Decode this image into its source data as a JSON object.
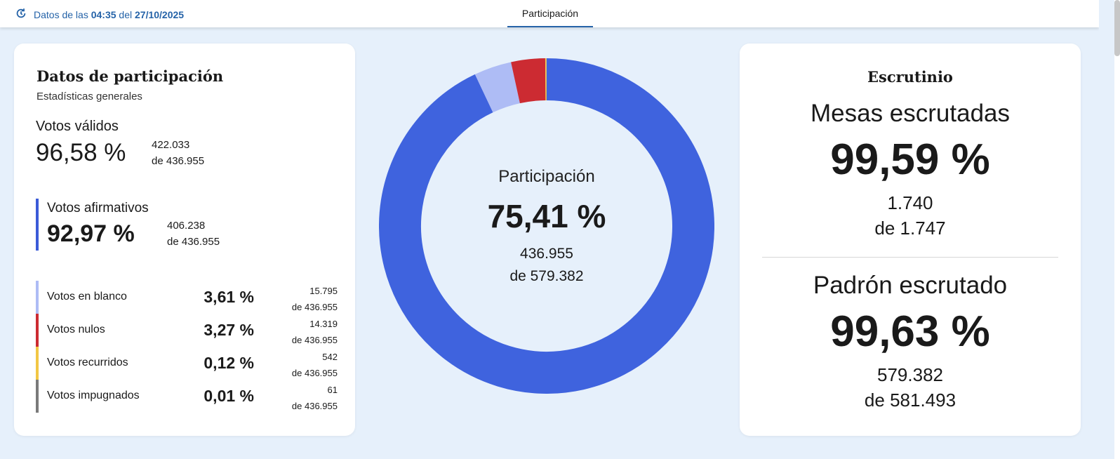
{
  "header": {
    "updated_prefix": "Datos de las",
    "time": "04:35",
    "updated_mid": "del",
    "date": "27/10/2025",
    "tab_label": "Participación"
  },
  "left_card": {
    "title": "Datos de participación",
    "subtitle": "Estadísticas generales",
    "valid": {
      "label": "Votos válidos",
      "pct": "96,58 %",
      "count": "422.033",
      "of": "de 436.955"
    },
    "affirmative": {
      "label": "Votos afirmativos",
      "pct": "92,97 %",
      "count": "406.238",
      "of": "de 436.955"
    },
    "rows": [
      {
        "label": "Votos en blanco",
        "pct": "3,61 %",
        "count": "15.795",
        "of": "de 436.955",
        "color": "#aebcf5"
      },
      {
        "label": "Votos nulos",
        "pct": "3,27 %",
        "count": "14.319",
        "of": "de 436.955",
        "color": "#cc2b32"
      },
      {
        "label": "Votos recurridos",
        "pct": "0,12 %",
        "count": "542",
        "of": "de 436.955",
        "color": "#f2c744"
      },
      {
        "label": "Votos impugnados",
        "pct": "0,01 %",
        "count": "61",
        "of": "de 436.955",
        "color": "#7a7a7a"
      }
    ]
  },
  "donut": {
    "label": "Participación",
    "pct": "75,41 %",
    "count": "436.955",
    "of": "de 579.382",
    "segments": [
      {
        "name": "Votos afirmativos",
        "value": 406238,
        "color": "#3f63de"
      },
      {
        "name": "Votos en blanco",
        "value": 15795,
        "color": "#aebcf5"
      },
      {
        "name": "Votos nulos",
        "value": 14319,
        "color": "#cc2b32"
      },
      {
        "name": "Votos recurridos",
        "value": 542,
        "color": "#f2c744"
      },
      {
        "name": "Votos impugnados",
        "value": 61,
        "color": "#7a7a7a"
      }
    ]
  },
  "right_card": {
    "title": "Escrutinio",
    "mesas": {
      "label": "Mesas escrutadas",
      "pct": "99,59 %",
      "count": "1.740",
      "of": "de 1.747"
    },
    "padron": {
      "label": "Padrón escrutado",
      "pct": "99,63 %",
      "count": "579.382",
      "of": "de 581.493"
    }
  }
}
